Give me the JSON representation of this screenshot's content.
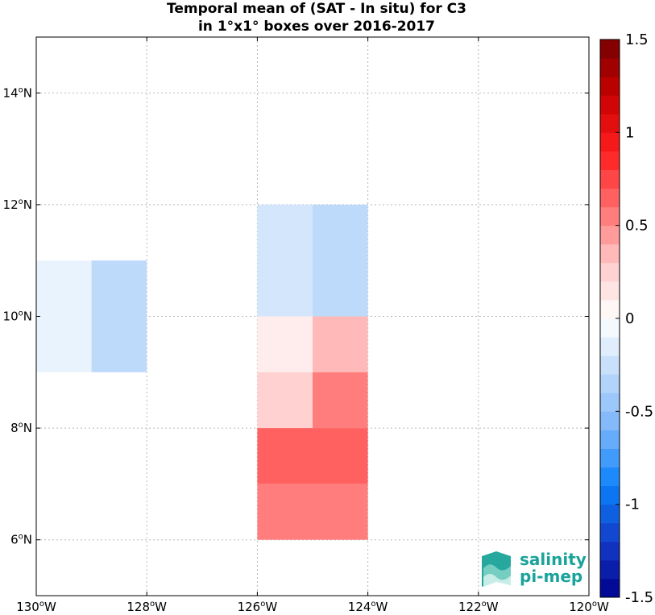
{
  "chart_data": {
    "type": "heatmap",
    "title": [
      "Temporal mean of (SAT - In situ) for C3",
      "in 1°x1° boxes over 2016-2017"
    ],
    "xlim": [
      -130,
      -120
    ],
    "ylim": [
      5,
      15
    ],
    "x_ticks": [
      {
        "value": -130,
        "deg": "130",
        "hem": "W"
      },
      {
        "value": -128,
        "deg": "128",
        "hem": "W"
      },
      {
        "value": -126,
        "deg": "126",
        "hem": "W"
      },
      {
        "value": -124,
        "deg": "124",
        "hem": "W"
      },
      {
        "value": -122,
        "deg": "122",
        "hem": "W"
      },
      {
        "value": -120,
        "deg": "120",
        "hem": "W"
      }
    ],
    "y_ticks": [
      {
        "value": 6,
        "deg": "6",
        "hem": "N"
      },
      {
        "value": 8,
        "deg": "8",
        "hem": "N"
      },
      {
        "value": 10,
        "deg": "10",
        "hem": "N"
      },
      {
        "value": 12,
        "deg": "12",
        "hem": "N"
      },
      {
        "value": 14,
        "deg": "14",
        "hem": "N"
      }
    ],
    "grid": true,
    "cells": [
      {
        "lon0": -130,
        "lat0": 9,
        "lon1": -129,
        "lat1": 11,
        "value": -0.1
      },
      {
        "lon0": -129,
        "lat0": 9,
        "lon1": -128,
        "lat1": 11,
        "value": -0.3
      },
      {
        "lon0": -126,
        "lat0": 10,
        "lon1": -125,
        "lat1": 12,
        "value": -0.2
      },
      {
        "lon0": -125,
        "lat0": 10,
        "lon1": -124,
        "lat1": 12,
        "value": -0.3
      },
      {
        "lon0": -126,
        "lat0": 9,
        "lon1": -125,
        "lat1": 10,
        "value": 0.1
      },
      {
        "lon0": -125,
        "lat0": 9,
        "lon1": -124,
        "lat1": 10,
        "value": 0.35
      },
      {
        "lon0": -126,
        "lat0": 8,
        "lon1": -125,
        "lat1": 9,
        "value": 0.25
      },
      {
        "lon0": -125,
        "lat0": 8,
        "lon1": -124,
        "lat1": 9,
        "value": 0.55
      },
      {
        "lon0": -126,
        "lat0": 7,
        "lon1": -124,
        "lat1": 8,
        "value": 0.65
      },
      {
        "lon0": -126,
        "lat0": 6,
        "lon1": -124,
        "lat1": 7,
        "value": 0.55
      }
    ],
    "colorbar": {
      "vmin": -1.5,
      "vmax": 1.5,
      "levels": 30,
      "tick_labels": [
        {
          "value": 1.5,
          "label": "1.5"
        },
        {
          "value": 1,
          "label": "1"
        },
        {
          "value": 0.5,
          "label": "0.5"
        },
        {
          "value": 0,
          "label": "0"
        },
        {
          "value": -0.5,
          "label": "-0.5"
        },
        {
          "value": -1,
          "label": "-1"
        },
        {
          "value": -1.5,
          "label": "-1.5"
        }
      ]
    }
  },
  "logo": {
    "line1": "salinity",
    "line2": "pi-mep",
    "color": "#1aa39a"
  }
}
